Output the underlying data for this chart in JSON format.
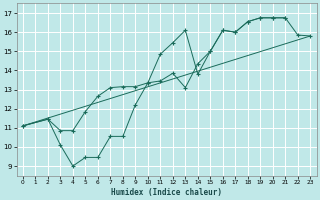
{
  "title": "",
  "xlabel": "Humidex (Indice chaleur)",
  "bg_color": "#c0e8e8",
  "line_color": "#1a6b5a",
  "grid_color": "#ffffff",
  "xlim": [
    -0.5,
    23.5
  ],
  "ylim": [
    8.5,
    17.5
  ],
  "xticks": [
    0,
    1,
    2,
    3,
    4,
    5,
    6,
    7,
    8,
    9,
    10,
    11,
    12,
    13,
    14,
    15,
    16,
    17,
    18,
    19,
    20,
    21,
    22,
    23
  ],
  "yticks": [
    9,
    10,
    11,
    12,
    13,
    14,
    15,
    16,
    17
  ],
  "line_zigzag": {
    "x": [
      0,
      2,
      3,
      4,
      5,
      6,
      7,
      8,
      9,
      10,
      11,
      12,
      13,
      14,
      15,
      16,
      17,
      18,
      19,
      20,
      21,
      22,
      23
    ],
    "y": [
      11.1,
      11.45,
      10.1,
      9.0,
      9.45,
      9.45,
      10.55,
      10.55,
      12.2,
      13.35,
      13.45,
      13.85,
      13.1,
      14.35,
      15.0,
      16.1,
      16.0,
      16.55,
      16.75,
      16.75,
      16.75,
      15.85,
      15.8
    ]
  },
  "line_upper": {
    "x": [
      0,
      2,
      3,
      4,
      5,
      6,
      7,
      8,
      9,
      10,
      11,
      12,
      13,
      14,
      15,
      16,
      17,
      18,
      19,
      20,
      21
    ],
    "y": [
      11.1,
      11.45,
      10.85,
      10.85,
      11.85,
      12.65,
      13.1,
      13.15,
      13.15,
      13.35,
      14.85,
      15.45,
      16.1,
      13.8,
      15.0,
      16.1,
      16.0,
      16.55,
      16.75,
      16.75,
      16.75
    ]
  },
  "line_straight": {
    "x": [
      0,
      23
    ],
    "y": [
      11.1,
      15.8
    ]
  },
  "marker_size": 2.5
}
